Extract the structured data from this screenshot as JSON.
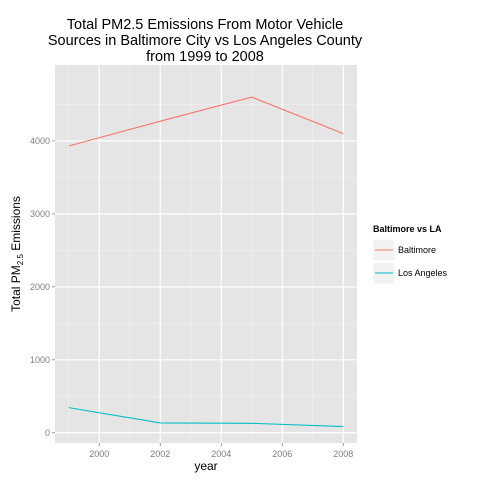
{
  "chart_data": {
    "type": "line",
    "title": [
      "Total PM2.5 Emissions From Motor Vehicle",
      "Sources in Baltimore City vs Los Angeles County",
      "from 1999 to 2008"
    ],
    "xlabel": "year",
    "ylabel": {
      "prefix": "Total PM",
      "sub": "2.5",
      "suffix": " Emissions"
    },
    "x": [
      1999,
      2002,
      2005,
      2008
    ],
    "xlim": [
      1998.55,
      2008.45
    ],
    "ylim": [
      -140,
      5040
    ],
    "x_ticks": [
      2000,
      2002,
      2004,
      2006,
      2008
    ],
    "y_ticks": [
      0,
      1000,
      2000,
      3000,
      4000
    ],
    "x_tick_labels": [
      "2000",
      "2002",
      "2004",
      "2006",
      "2008"
    ],
    "y_tick_labels": [
      "0",
      "1000",
      "2000",
      "3000",
      "4000"
    ],
    "grid": true,
    "legend": {
      "title": "Baltimore vs LA",
      "placement": "right"
    },
    "series": [
      {
        "name": "Baltimore",
        "color": "#f8766d",
        "values": [
          3930,
          4270,
          4600,
          4100
        ]
      },
      {
        "name": "Los Angeles",
        "color": "#00bfc4",
        "values": [
          345,
          135,
          130,
          85
        ]
      }
    ]
  }
}
